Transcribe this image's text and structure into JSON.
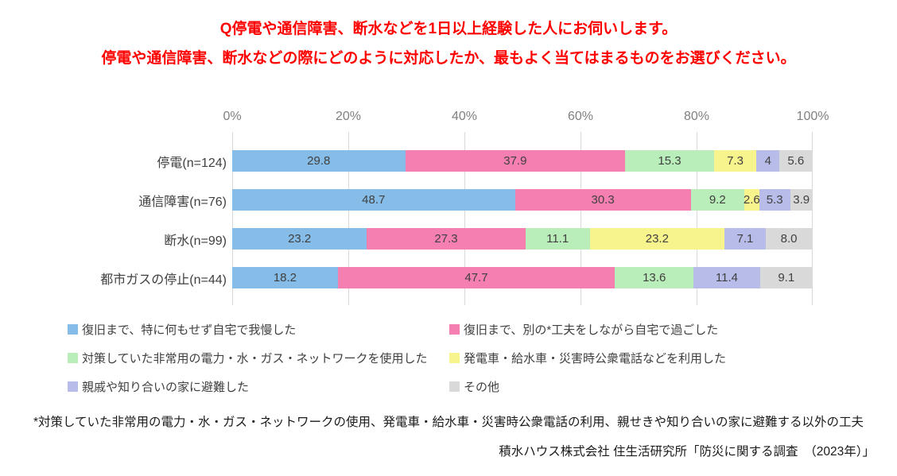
{
  "title": {
    "line1": "Q停電や通信障害、断水などを1日以上経験した人にお伺いします。",
    "line2": "停電や通信障害、断水などの際にどのように対応したか、最もよく当てはまるものをお選びください。"
  },
  "chart_data": {
    "type": "bar",
    "stacked": true,
    "orientation": "horizontal",
    "title": "停電や通信障害、断水などの際にどのように対応したか",
    "xlim": [
      0,
      100
    ],
    "x_ticks": [
      "0%",
      "20%",
      "40%",
      "60%",
      "80%",
      "100%"
    ],
    "grid": true,
    "legend_position": "bottom",
    "categories": [
      "停電(n=124)",
      "通信障害(n=76)",
      "断水(n=99)",
      "都市ガスの停止(n=44)"
    ],
    "series": [
      {
        "name": "復旧まで、特に何もせず自宅で我慢した",
        "color": "#85bce8",
        "values": [
          29.8,
          48.7,
          23.2,
          18.2
        ],
        "labels": [
          "29.8",
          "48.7",
          "23.2",
          "18.2"
        ]
      },
      {
        "name": "復旧まで、別の*工夫をしながら自宅で過ごした",
        "color": "#f67fb2",
        "values": [
          37.9,
          30.3,
          27.3,
          47.7
        ],
        "labels": [
          "37.9",
          "30.3",
          "27.3",
          "47.7"
        ]
      },
      {
        "name": "対策していた非常用の電力・水・ガス・ネットワークを使用した",
        "color": "#b9edb9",
        "values": [
          15.3,
          9.2,
          11.1,
          13.6
        ],
        "labels": [
          "15.3",
          "9.2",
          "11.1",
          "13.6"
        ]
      },
      {
        "name": "発電車・給水車・災害時公衆電話などを利用した",
        "color": "#f8f48d",
        "values": [
          7.3,
          2.6,
          23.2,
          0
        ],
        "labels": [
          "7.3",
          "2.6",
          "23.2",
          ""
        ]
      },
      {
        "name": "親戚や知り合いの家に避難した",
        "color": "#b7bce9",
        "values": [
          4,
          5.3,
          7.1,
          11.4
        ],
        "labels": [
          "4",
          "5.3",
          "7.1",
          "11.4"
        ]
      },
      {
        "name": "その他",
        "color": "#d9d9d9",
        "values": [
          5.6,
          3.9,
          8.0,
          9.1
        ],
        "labels": [
          "5.6",
          "3.9",
          "8.0",
          "9.1"
        ]
      }
    ]
  },
  "footnote": "*対策していた非常用の電力・水・ガス・ネットワークの使用、発電車・給水車・災害時公衆電話の利用、親せきや知り合いの家に避難する以外の工夫",
  "source": "積水ハウス株式会社 住生活研究所「防災に関する調査　（2023年）」"
}
